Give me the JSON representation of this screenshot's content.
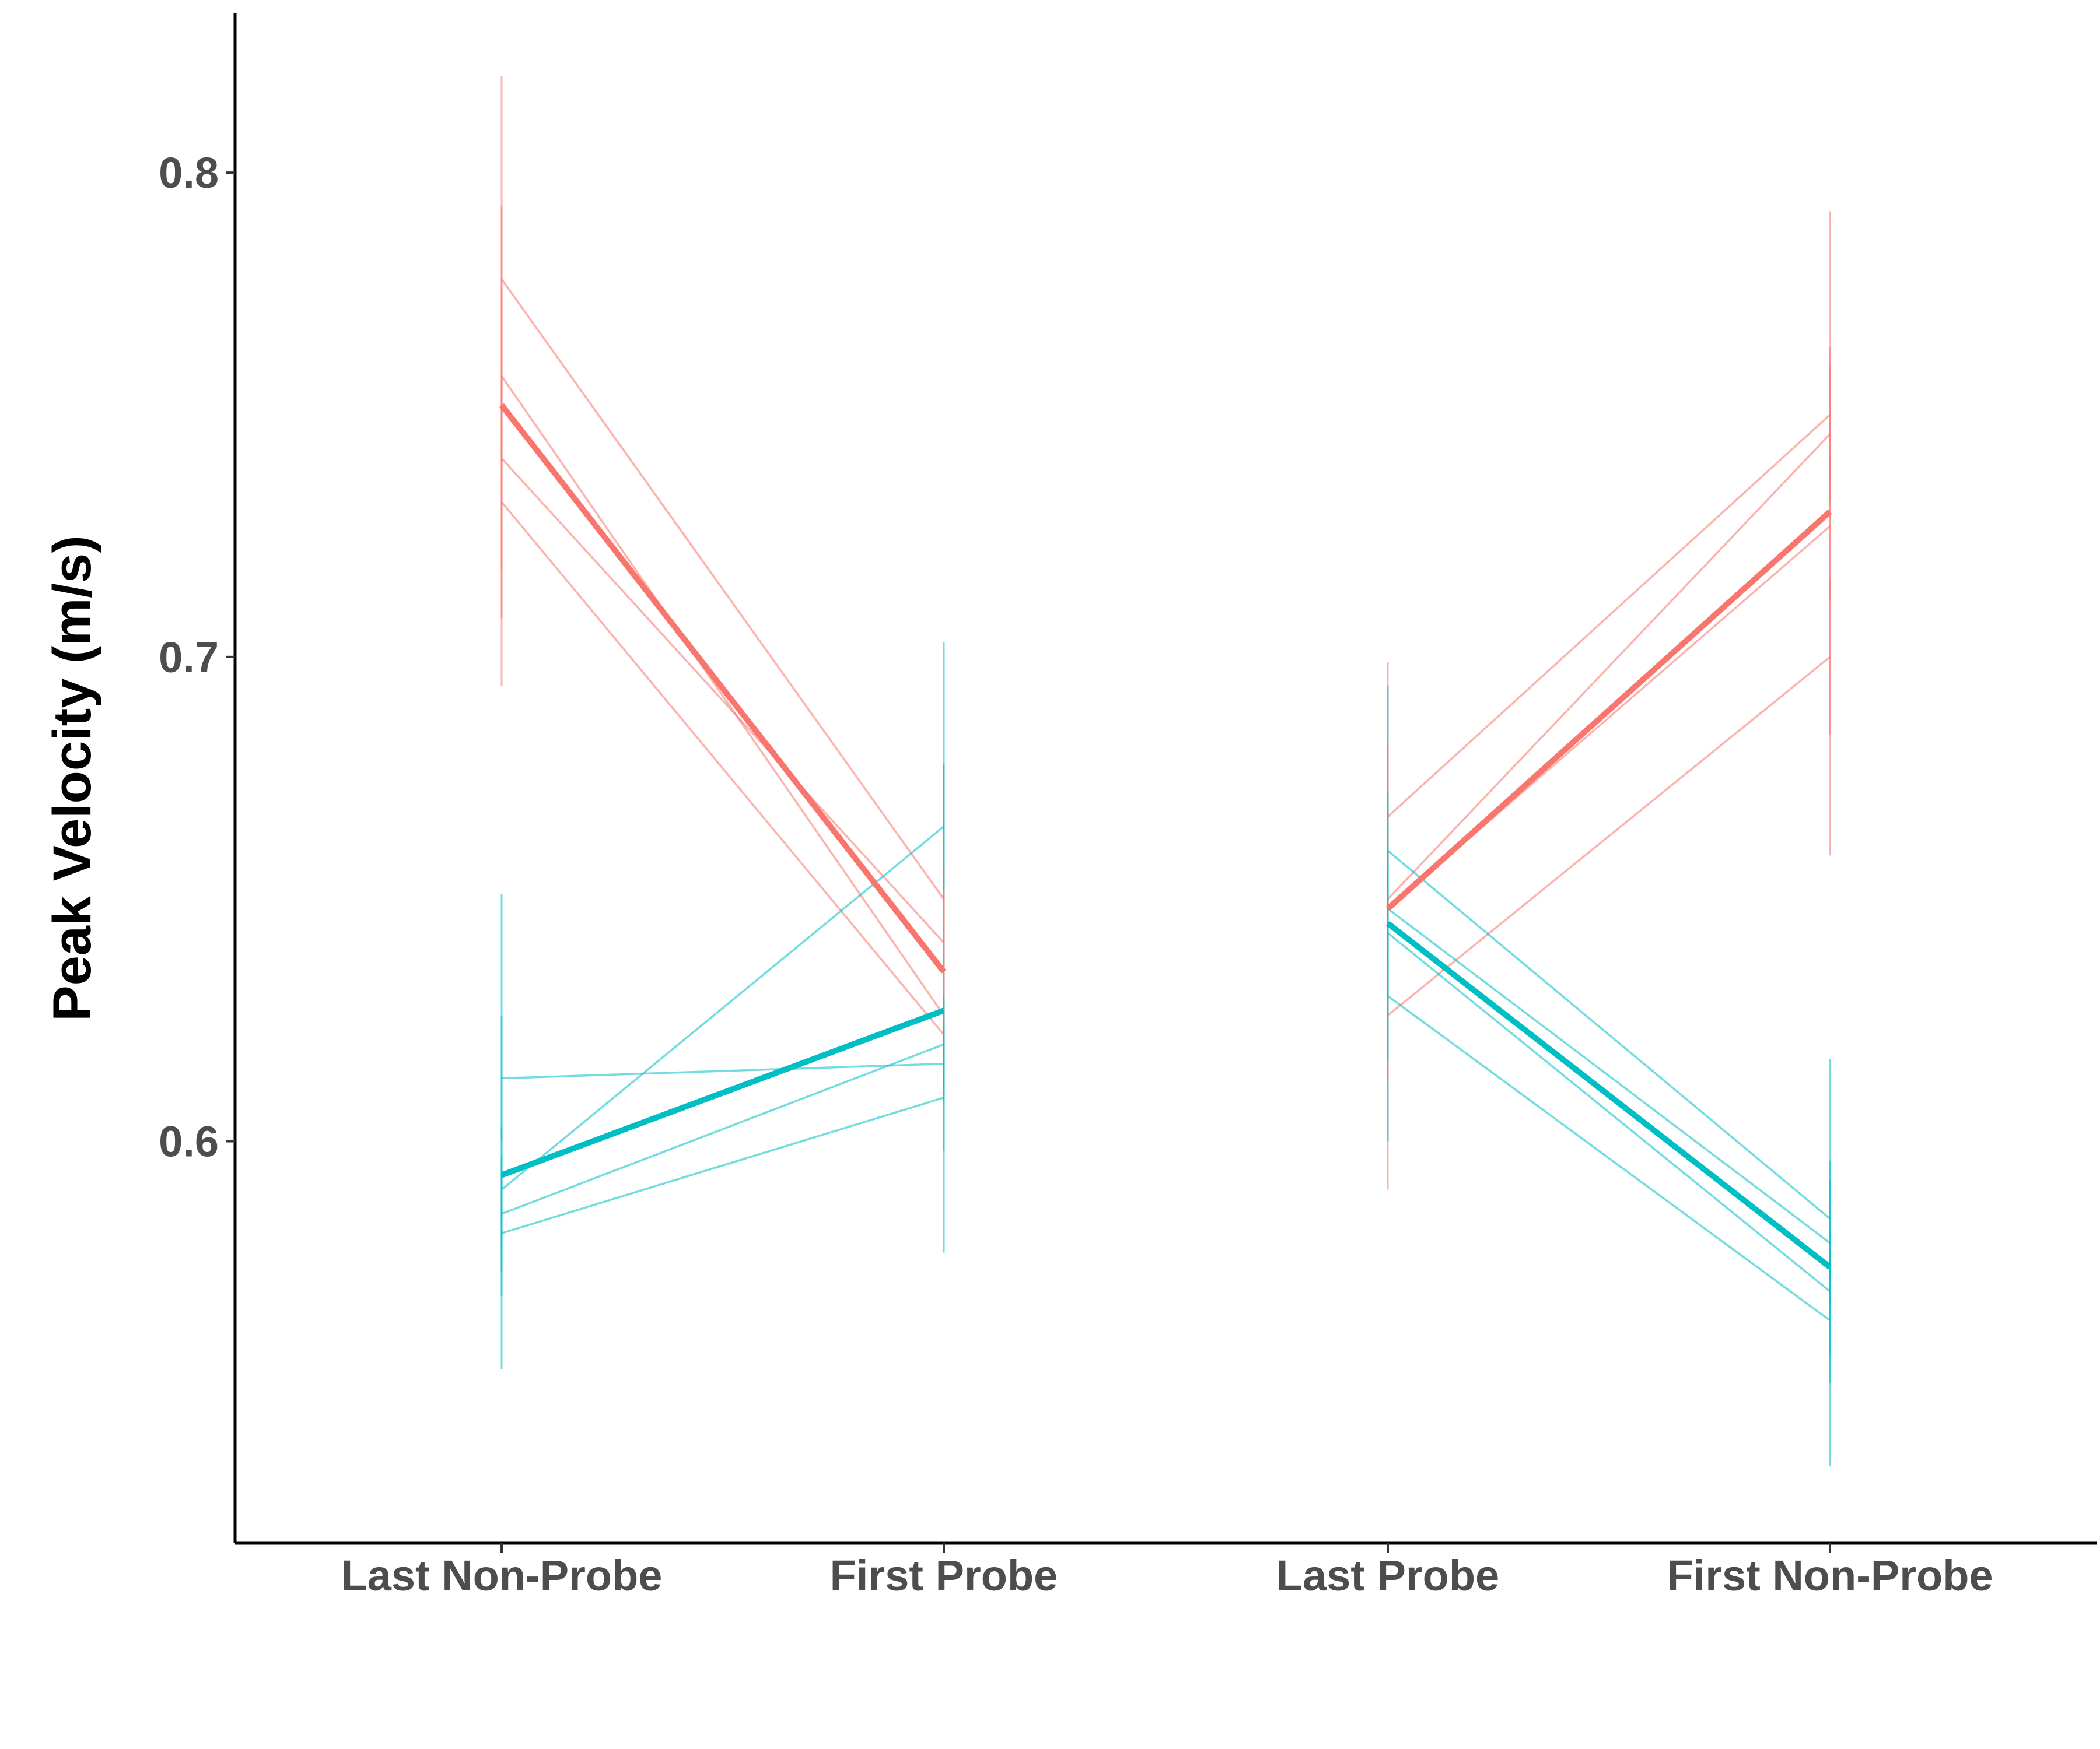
{
  "chart_data": {
    "type": "line",
    "title": "",
    "xlabel": "",
    "ylabel": "Peak Velocity (m/s)",
    "categories": [
      "Last Non-Probe",
      "First Probe",
      "Last Probe",
      "First Non-Probe"
    ],
    "yticks": [
      0.6,
      0.7,
      0.8
    ],
    "ytick_labels": [
      "0.6",
      "0.7",
      "0.8"
    ],
    "ylim": [
      0.517,
      0.833
    ],
    "grid": false,
    "legend": "none",
    "colors": {
      "red": "#F8766D",
      "teal": "#00BFC4"
    },
    "individual_lines": [
      {
        "group": "red",
        "segment": 1,
        "values": [
          0.778,
          0.65
        ],
        "errors": [
          [
            0.793,
            0.764
          ],
          [
            0.658,
            0.642
          ]
        ]
      },
      {
        "group": "red",
        "segment": 1,
        "values": [
          0.758,
          0.626
        ],
        "errors": [
          [
            0.776,
            0.74
          ],
          [
            0.633,
            0.619
          ]
        ]
      },
      {
        "group": "red",
        "segment": 1,
        "values": [
          0.741,
          0.641
        ],
        "errors": [
          [
            0.764,
            0.718
          ],
          [
            0.65,
            0.632
          ]
        ]
      },
      {
        "group": "red",
        "segment": 1,
        "values": [
          0.732,
          0.622
        ],
        "errors": [
          [
            0.756,
            0.708
          ],
          [
            0.63,
            0.614
          ]
        ]
      },
      {
        "group": "teal",
        "segment": 1,
        "values": [
          0.613,
          0.616
        ],
        "errors": [
          [
            0.626,
            0.6
          ],
          [
            0.624,
            0.608
          ]
        ]
      },
      {
        "group": "teal",
        "segment": 1,
        "values": [
          0.59,
          0.665
        ],
        "errors": [
          [
            0.603,
            0.577
          ],
          [
            0.678,
            0.652
          ]
        ]
      },
      {
        "group": "teal",
        "segment": 1,
        "values": [
          0.585,
          0.62
        ],
        "errors": [
          [
            0.597,
            0.573
          ],
          [
            0.63,
            0.61
          ]
        ]
      },
      {
        "group": "teal",
        "segment": 1,
        "values": [
          0.581,
          0.609
        ],
        "errors": [
          [
            0.594,
            0.568
          ],
          [
            0.62,
            0.598
          ]
        ]
      },
      {
        "group": "red",
        "segment": 2,
        "values": [
          0.667,
          0.75
        ],
        "errors": [
          [
            0.683,
            0.651
          ],
          [
            0.764,
            0.736
          ]
        ]
      },
      {
        "group": "red",
        "segment": 2,
        "values": [
          0.65,
          0.746
        ],
        "errors": [
          [
            0.664,
            0.636
          ],
          [
            0.76,
            0.732
          ]
        ]
      },
      {
        "group": "red",
        "segment": 2,
        "values": [
          0.648,
          0.727
        ],
        "errors": [
          [
            0.66,
            0.636
          ],
          [
            0.742,
            0.712
          ]
        ]
      },
      {
        "group": "red",
        "segment": 2,
        "values": [
          0.626,
          0.7
        ],
        "errors": [
          [
            0.64,
            0.612
          ],
          [
            0.716,
            0.684
          ]
        ]
      },
      {
        "group": "teal",
        "segment": 2,
        "values": [
          0.66,
          0.584
        ],
        "errors": [
          [
            0.672,
            0.648
          ],
          [
            0.596,
            0.572
          ]
        ]
      },
      {
        "group": "teal",
        "segment": 2,
        "values": [
          0.648,
          0.579
        ],
        "errors": [
          [
            0.66,
            0.636
          ],
          [
            0.592,
            0.566
          ]
        ]
      },
      {
        "group": "teal",
        "segment": 2,
        "values": [
          0.643,
          0.569
        ],
        "errors": [
          [
            0.656,
            0.63
          ],
          [
            0.582,
            0.556
          ]
        ]
      },
      {
        "group": "teal",
        "segment": 2,
        "values": [
          0.63,
          0.563
        ],
        "errors": [
          [
            0.643,
            0.617
          ],
          [
            0.576,
            0.55
          ]
        ]
      }
    ],
    "mean_lines": [
      {
        "group": "red",
        "segment": 1,
        "values": [
          0.752,
          0.635
        ]
      },
      {
        "group": "teal",
        "segment": 1,
        "values": [
          0.593,
          0.627
        ]
      },
      {
        "group": "red",
        "segment": 2,
        "values": [
          0.648,
          0.73
        ]
      },
      {
        "group": "teal",
        "segment": 2,
        "values": [
          0.645,
          0.574
        ]
      }
    ],
    "error_bars": [
      {
        "group": "red",
        "category": 0,
        "range": [
          0.694,
          0.82
        ]
      },
      {
        "group": "teal",
        "category": 0,
        "range": [
          0.553,
          0.651
        ]
      },
      {
        "group": "red",
        "category": 1,
        "range": [
          0.614,
          0.678
        ]
      },
      {
        "group": "teal",
        "category": 1,
        "range": [
          0.577,
          0.703
        ]
      },
      {
        "group": "red",
        "category": 2,
        "range": [
          0.59,
          0.699
        ]
      },
      {
        "group": "teal",
        "category": 2,
        "range": [
          0.6,
          0.694
        ]
      },
      {
        "group": "red",
        "category": 3,
        "range": [
          0.659,
          0.792
        ]
      },
      {
        "group": "teal",
        "category": 3,
        "range": [
          0.533,
          0.617
        ]
      }
    ]
  }
}
